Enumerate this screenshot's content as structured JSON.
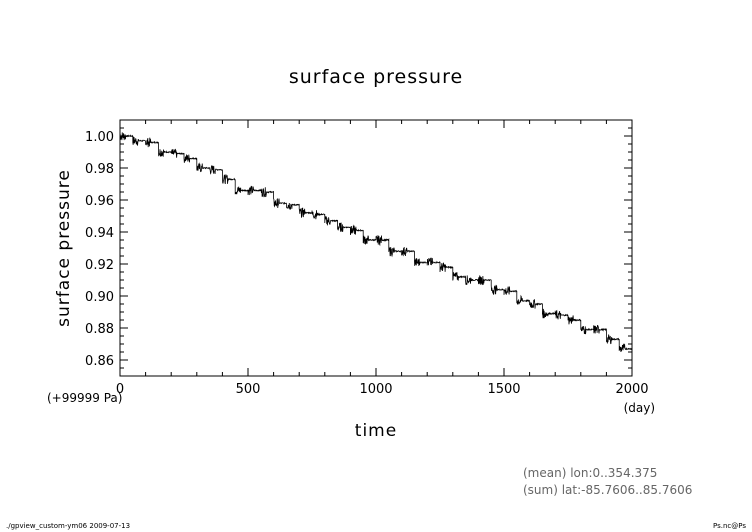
{
  "chart_data": {
    "type": "line",
    "title": "surface pressure",
    "xlabel": "time",
    "ylabel": "surface pressure",
    "x_unit": "(day)",
    "y_unit": "(+99999 Pa)",
    "xlim": [
      0,
      2000
    ],
    "ylim": [
      0.85,
      1.01
    ],
    "x_ticks": [
      0,
      500,
      1000,
      1500,
      2000
    ],
    "y_ticks": [
      0.86,
      0.88,
      0.9,
      0.92,
      0.94,
      0.96,
      0.98,
      1.0
    ],
    "x_tick_labels": [
      "0",
      "500",
      "1000",
      "1500",
      "2000"
    ],
    "y_tick_labels": [
      "0.86",
      "0.88",
      "0.90",
      "0.92",
      "0.94",
      "0.96",
      "0.98",
      "1.00"
    ],
    "grid": false,
    "series": [
      {
        "color": "#000000",
        "x": [
          0,
          50,
          100,
          150,
          200,
          250,
          300,
          350,
          400,
          450,
          500,
          550,
          600,
          650,
          700,
          750,
          800,
          850,
          900,
          950,
          1000,
          1050,
          1100,
          1150,
          1200,
          1250,
          1300,
          1350,
          1400,
          1450,
          1500,
          1550,
          1600,
          1650,
          1700,
          1750,
          1800,
          1850,
          1900,
          1950,
          2000
        ],
        "values": [
          1.0,
          0.997,
          0.996,
          0.99,
          0.989,
          0.986,
          0.98,
          0.979,
          0.973,
          0.966,
          0.966,
          0.965,
          0.958,
          0.957,
          0.952,
          0.951,
          0.947,
          0.943,
          0.941,
          0.935,
          0.935,
          0.928,
          0.928,
          0.921,
          0.921,
          0.918,
          0.912,
          0.91,
          0.91,
          0.904,
          0.903,
          0.897,
          0.895,
          0.889,
          0.888,
          0.885,
          0.879,
          0.879,
          0.873,
          0.867,
          0.861
        ]
      }
    ]
  },
  "annotations": {
    "mean_line": "(mean) lon:0..354.375",
    "sum_line": "(sum) lat:-85.7606..85.7606"
  },
  "footer": {
    "left": "./gpview_custom-ym06  2009-07-13",
    "right": "Ps.nc@Ps"
  }
}
